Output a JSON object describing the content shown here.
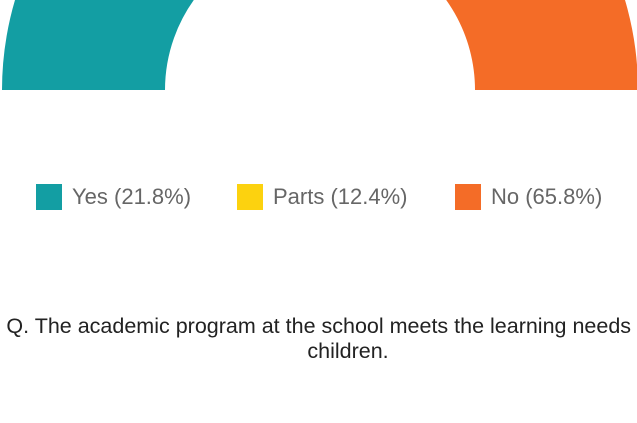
{
  "chart_data": {
    "type": "half-donut",
    "categories": [
      "Yes (21.8%)",
      "Parts (12.4%)",
      "No (65.8%)"
    ],
    "values": [
      21.8,
      12.4,
      65.8
    ],
    "colors": [
      "#139ea3",
      "#fcd20f",
      "#f46c27"
    ],
    "title": "Q. The academic program at the school meets the learning needs of my children."
  }
}
